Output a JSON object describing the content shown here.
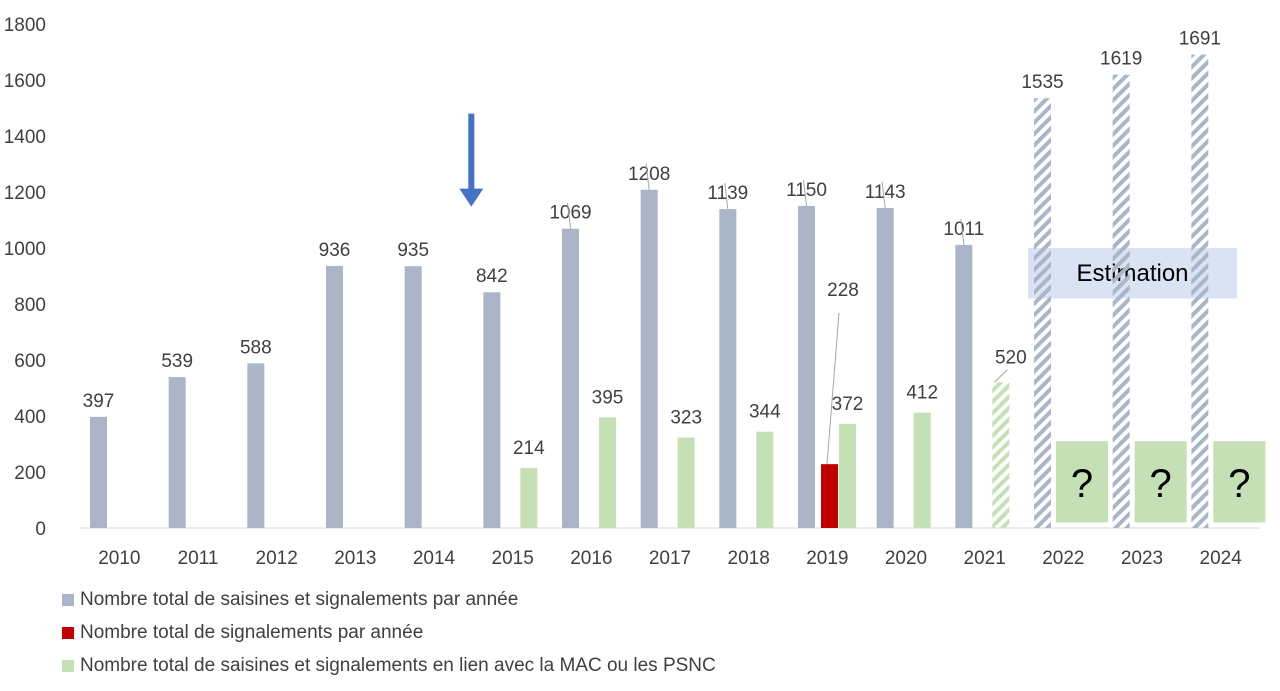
{
  "chart_data": {
    "type": "bar",
    "title": "",
    "xlabel": "",
    "ylabel": "",
    "ylim": [
      0,
      1800
    ],
    "yticks": [
      "0",
      "200",
      "400",
      "600",
      "800",
      "1000",
      "1200",
      "1400",
      "1600",
      "1800"
    ],
    "categories": [
      "2010",
      "2011",
      "2012",
      "2013",
      "2014",
      "2015",
      "2016",
      "2017",
      "2018",
      "2019",
      "2020",
      "2021",
      "2022",
      "2023",
      "2024"
    ],
    "series": [
      {
        "name": "Nombre total de saisines et signalements par année",
        "color": "#aab5c8",
        "values": [
          397,
          539,
          588,
          936,
          935,
          842,
          1069,
          1208,
          1139,
          1150,
          1143,
          1011,
          1535,
          1619,
          1691
        ],
        "labels": [
          "397",
          "539",
          "588",
          "936",
          "935",
          "842",
          "1069",
          "1208",
          "1139",
          "1150",
          "1143",
          "1011",
          "1535",
          "1619",
          "1691"
        ],
        "estimated": [
          false,
          false,
          false,
          false,
          false,
          false,
          false,
          false,
          false,
          false,
          false,
          false,
          true,
          true,
          true
        ]
      },
      {
        "name": "Nombre total de signalements par année",
        "color": "#c00000",
        "values": [
          null,
          null,
          null,
          null,
          null,
          null,
          null,
          null,
          null,
          228,
          null,
          null,
          null,
          null,
          null
        ],
        "labels": [
          "",
          "",
          "",
          "",
          "",
          "",
          "",
          "",
          "",
          "228",
          "",
          "",
          "",
          "",
          ""
        ]
      },
      {
        "name": "Nombre total de saisines et signalements en lien avec la MAC ou les PSNC",
        "color": "#c5e0b4",
        "values": [
          null,
          null,
          null,
          null,
          null,
          214,
          395,
          323,
          344,
          372,
          412,
          520,
          null,
          null,
          null
        ],
        "labels": [
          "",
          "",
          "",
          "",
          "",
          "214",
          "395",
          "323",
          "344",
          "372",
          "412",
          "520",
          "",
          "",
          ""
        ],
        "estimated": [
          false,
          false,
          false,
          false,
          false,
          false,
          false,
          false,
          false,
          false,
          false,
          true,
          false,
          false,
          false
        ],
        "unknown": [
          false,
          false,
          false,
          false,
          false,
          false,
          false,
          false,
          false,
          false,
          false,
          false,
          true,
          true,
          true
        ],
        "unknown_label": "?"
      }
    ],
    "annotations": {
      "estimation_label": "Estimation",
      "arrow_category": "2015"
    }
  },
  "colors": {
    "axis": "#d9d9d9",
    "text": "#404040",
    "estimation_box": "#dae3f3",
    "arrow": "#4472c4",
    "leader": "#a6a6a6"
  }
}
